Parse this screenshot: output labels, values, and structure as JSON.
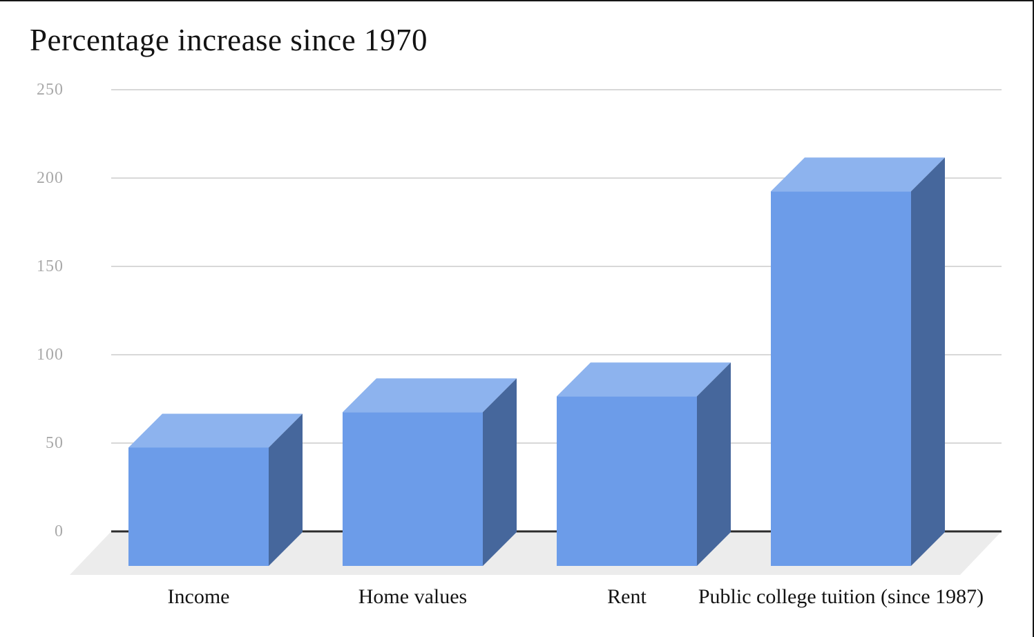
{
  "chart_data": {
    "type": "bar",
    "style": "3d-column",
    "title": "Percentage increase since 1970",
    "categories": [
      "Income",
      "Home values",
      "Rent",
      "Public college tuition (since 1987)"
    ],
    "values": [
      67,
      87,
      96,
      212
    ],
    "series": [
      {
        "name": "Percentage increase",
        "values": [
          67,
          87,
          96,
          212
        ]
      }
    ],
    "xlabel": "",
    "ylabel": "",
    "ylim": [
      0,
      250
    ],
    "yticks": [
      0,
      50,
      100,
      150,
      200,
      250
    ],
    "grid": true,
    "legend": false,
    "colors": {
      "bar_front": "#6c9ce9",
      "bar_top": "#8db3ee",
      "bar_side": "#46679c",
      "floor": "#ececec",
      "gridline": "#d8d8d8",
      "zero_line": "#2b2b2b",
      "tick_label": "#a9a9a9",
      "text": "#131313",
      "border": "#161616"
    }
  }
}
